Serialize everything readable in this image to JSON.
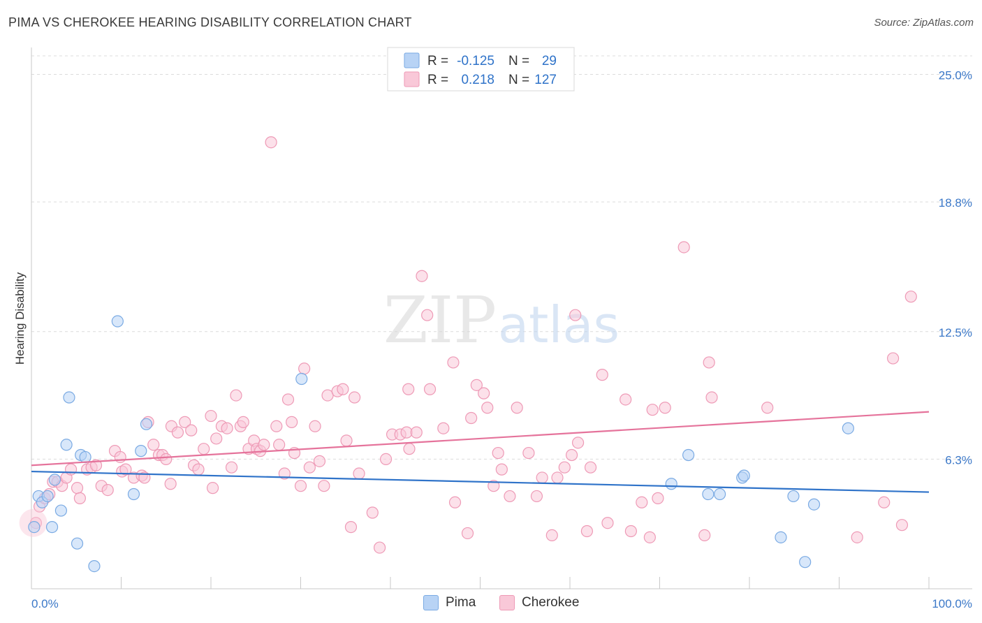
{
  "header": {
    "title": "PIMA VS CHEROKEE HEARING DISABILITY CORRELATION CHART",
    "source": "Source: ZipAtlas.com"
  },
  "watermark": {
    "zip": "ZIP",
    "atlas": "atlas"
  },
  "stats_legend": [
    {
      "r_label": "R =",
      "r_value": "-0.125",
      "n_label": "N =",
      "n_value": "29"
    },
    {
      "r_label": "R =",
      "r_value": "0.218",
      "n_label": "N =",
      "n_value": "127"
    }
  ],
  "colors": {
    "pima_fill": "#b8d3f5",
    "pima_stroke": "#7aaae3",
    "pima_line": "#2f73c9",
    "cherokee_fill": "#f9c8d8",
    "cherokee_stroke": "#ee9ab6",
    "cherokee_line": "#e5739b",
    "tick_text": "#3b78c8",
    "grid": "#dcdcdc"
  },
  "chart_data": {
    "type": "scatter",
    "title": "PIMA VS CHEROKEE HEARING DISABILITY CORRELATION CHART",
    "xlabel": "",
    "ylabel": "Hearing Disability",
    "xlim": [
      0,
      100
    ],
    "ylim": [
      0,
      25.9
    ],
    "x_tick_labels": [
      "0.0%",
      "100.0%"
    ],
    "y_ticks": [
      {
        "value": 6.3,
        "label": "6.3%"
      },
      {
        "value": 12.5,
        "label": "12.5%"
      },
      {
        "value": 18.8,
        "label": "18.8%"
      },
      {
        "value": 25.0,
        "label": "25.0%"
      }
    ],
    "legend": [
      "Pima",
      "Cherokee"
    ],
    "series": [
      {
        "name": "Pima",
        "r": -0.125,
        "n": 29,
        "trend": {
          "x0": 0,
          "y0": 5.7,
          "x1": 100,
          "y1": 4.7
        },
        "points": [
          [
            0.3,
            3.0
          ],
          [
            0.8,
            4.5
          ],
          [
            1.2,
            4.2
          ],
          [
            1.8,
            4.5
          ],
          [
            2.3,
            3.0
          ],
          [
            2.6,
            5.3
          ],
          [
            3.3,
            3.8
          ],
          [
            3.9,
            7.0
          ],
          [
            4.2,
            9.3
          ],
          [
            5.1,
            2.2
          ],
          [
            5.5,
            6.5
          ],
          [
            6.0,
            6.4
          ],
          [
            7.0,
            1.1
          ],
          [
            9.6,
            13.0
          ],
          [
            11.4,
            4.6
          ],
          [
            12.2,
            6.7
          ],
          [
            12.8,
            8.0
          ],
          [
            30.1,
            10.2
          ],
          [
            71.3,
            5.1
          ],
          [
            73.2,
            6.5
          ],
          [
            75.4,
            4.6
          ],
          [
            76.7,
            4.6
          ],
          [
            79.2,
            5.4
          ],
          [
            79.4,
            5.5
          ],
          [
            83.5,
            2.5
          ],
          [
            84.9,
            4.5
          ],
          [
            86.2,
            1.3
          ],
          [
            87.2,
            4.1
          ],
          [
            91.0,
            7.8
          ]
        ]
      },
      {
        "name": "Cherokee",
        "r": 0.218,
        "n": 127,
        "trend": {
          "x0": 0,
          "y0": 6.0,
          "x1": 100,
          "y1": 8.6
        },
        "points": [
          [
            0.5,
            3.2
          ],
          [
            0.9,
            4.0
          ],
          [
            1.5,
            4.4
          ],
          [
            2.0,
            4.6
          ],
          [
            2.4,
            5.2
          ],
          [
            2.9,
            5.2
          ],
          [
            3.4,
            5.0
          ],
          [
            3.9,
            5.4
          ],
          [
            4.4,
            5.8
          ],
          [
            5.1,
            4.9
          ],
          [
            5.4,
            4.4
          ],
          [
            6.2,
            5.8
          ],
          [
            6.7,
            5.9
          ],
          [
            7.2,
            6.0
          ],
          [
            7.8,
            5.0
          ],
          [
            8.5,
            4.8
          ],
          [
            9.3,
            6.7
          ],
          [
            9.9,
            6.4
          ],
          [
            10.1,
            5.7
          ],
          [
            10.5,
            5.8
          ],
          [
            11.4,
            5.4
          ],
          [
            12.3,
            5.5
          ],
          [
            12.6,
            5.4
          ],
          [
            13.0,
            8.1
          ],
          [
            13.6,
            7.0
          ],
          [
            14.2,
            6.5
          ],
          [
            14.6,
            6.5
          ],
          [
            15.0,
            6.3
          ],
          [
            15.5,
            5.1
          ],
          [
            15.6,
            7.9
          ],
          [
            16.3,
            7.6
          ],
          [
            17.1,
            8.1
          ],
          [
            17.8,
            7.7
          ],
          [
            18.1,
            6.0
          ],
          [
            18.6,
            5.8
          ],
          [
            19.2,
            6.8
          ],
          [
            20.0,
            8.4
          ],
          [
            20.2,
            4.9
          ],
          [
            20.6,
            7.3
          ],
          [
            21.2,
            7.9
          ],
          [
            21.8,
            7.8
          ],
          [
            22.3,
            5.9
          ],
          [
            22.8,
            9.4
          ],
          [
            23.3,
            7.9
          ],
          [
            23.6,
            8.1
          ],
          [
            24.2,
            6.8
          ],
          [
            24.8,
            7.2
          ],
          [
            25.1,
            6.8
          ],
          [
            25.5,
            6.7
          ],
          [
            25.9,
            7.0
          ],
          [
            26.7,
            21.7
          ],
          [
            27.3,
            7.9
          ],
          [
            27.6,
            7.0
          ],
          [
            28.2,
            5.6
          ],
          [
            28.6,
            9.2
          ],
          [
            29.0,
            8.1
          ],
          [
            29.3,
            6.6
          ],
          [
            30.0,
            5.0
          ],
          [
            30.4,
            10.7
          ],
          [
            31.0,
            5.9
          ],
          [
            31.6,
            7.9
          ],
          [
            32.1,
            6.2
          ],
          [
            32.6,
            5.0
          ],
          [
            33.0,
            9.4
          ],
          [
            34.1,
            9.6
          ],
          [
            34.7,
            9.7
          ],
          [
            35.1,
            7.2
          ],
          [
            35.6,
            3.0
          ],
          [
            36.0,
            9.3
          ],
          [
            36.5,
            5.6
          ],
          [
            38.0,
            3.7
          ],
          [
            38.8,
            2.0
          ],
          [
            39.5,
            6.3
          ],
          [
            40.2,
            7.5
          ],
          [
            41.1,
            7.5
          ],
          [
            41.8,
            7.6
          ],
          [
            42.0,
            9.7
          ],
          [
            42.1,
            6.8
          ],
          [
            42.9,
            7.6
          ],
          [
            43.5,
            15.2
          ],
          [
            44.1,
            13.3
          ],
          [
            44.4,
            9.7
          ],
          [
            45.9,
            7.8
          ],
          [
            47.0,
            11.0
          ],
          [
            47.2,
            4.2
          ],
          [
            48.6,
            2.7
          ],
          [
            49.0,
            8.3
          ],
          [
            49.6,
            9.9
          ],
          [
            50.4,
            9.5
          ],
          [
            50.8,
            8.8
          ],
          [
            51.5,
            5.0
          ],
          [
            52.0,
            6.6
          ],
          [
            52.4,
            5.8
          ],
          [
            53.3,
            4.5
          ],
          [
            54.1,
            8.8
          ],
          [
            55.4,
            6.6
          ],
          [
            56.3,
            4.5
          ],
          [
            56.9,
            5.4
          ],
          [
            58.0,
            2.6
          ],
          [
            58.6,
            5.4
          ],
          [
            59.4,
            5.9
          ],
          [
            60.2,
            6.5
          ],
          [
            60.6,
            13.3
          ],
          [
            60.9,
            7.1
          ],
          [
            61.9,
            2.8
          ],
          [
            62.3,
            5.9
          ],
          [
            63.6,
            10.4
          ],
          [
            64.2,
            3.2
          ],
          [
            66.2,
            9.2
          ],
          [
            66.8,
            2.8
          ],
          [
            68.0,
            4.2
          ],
          [
            68.9,
            2.5
          ],
          [
            69.2,
            8.7
          ],
          [
            69.8,
            4.4
          ],
          [
            70.6,
            8.8
          ],
          [
            72.7,
            16.6
          ],
          [
            75.0,
            2.6
          ],
          [
            75.5,
            11.0
          ],
          [
            75.8,
            9.3
          ],
          [
            82.0,
            8.8
          ],
          [
            92.0,
            2.5
          ],
          [
            95.0,
            4.2
          ],
          [
            96.0,
            11.2
          ],
          [
            97.0,
            3.1
          ],
          [
            98.0,
            14.2
          ]
        ]
      }
    ]
  }
}
